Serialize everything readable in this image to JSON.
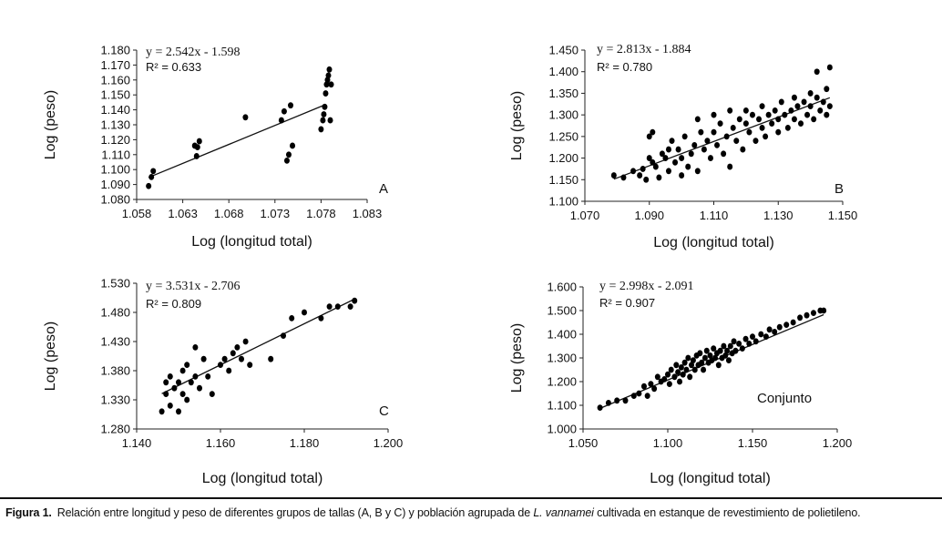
{
  "chart_data": [
    {
      "type": "scatter",
      "panel_label": "A",
      "equation": "y = 2.542x - 1.598",
      "r2_label": "R² = 0.633",
      "xlabel": "Log (longitud total)",
      "ylabel": "Log (peso)",
      "xlim": [
        1.058,
        1.083
      ],
      "ylim": [
        1.08,
        1.18
      ],
      "xticks": [
        "1.058",
        "1.063",
        "1.068",
        "1.073",
        "1.078",
        "1.083"
      ],
      "yticks": [
        "1.080",
        "1.090",
        "1.100",
        "1.110",
        "1.120",
        "1.130",
        "1.140",
        "1.150",
        "1.160",
        "1.170",
        "1.180"
      ],
      "trendline": {
        "slope": 2.542,
        "intercept": -1.598,
        "x_range": [
          1.0593,
          1.0785
        ]
      },
      "points": [
        [
          1.0593,
          1.089
        ],
        [
          1.0596,
          1.095
        ],
        [
          1.0598,
          1.099
        ],
        [
          1.0643,
          1.116
        ],
        [
          1.0645,
          1.109
        ],
        [
          1.0646,
          1.115
        ],
        [
          1.0648,
          1.119
        ],
        [
          1.0698,
          1.135
        ],
        [
          1.0737,
          1.133
        ],
        [
          1.074,
          1.139
        ],
        [
          1.0743,
          1.106
        ],
        [
          1.0745,
          1.11
        ],
        [
          1.0747,
          1.143
        ],
        [
          1.0749,
          1.116
        ],
        [
          1.078,
          1.127
        ],
        [
          1.0782,
          1.133
        ],
        [
          1.0783,
          1.137
        ],
        [
          1.0784,
          1.142
        ],
        [
          1.0785,
          1.151
        ],
        [
          1.0786,
          1.157
        ],
        [
          1.0787,
          1.16
        ],
        [
          1.0788,
          1.163
        ],
        [
          1.0789,
          1.167
        ],
        [
          1.079,
          1.133
        ],
        [
          1.0791,
          1.157
        ]
      ]
    },
    {
      "type": "scatter",
      "panel_label": "B",
      "equation": "y = 2.813x - 1.884",
      "r2_label": "R² = 0.780",
      "xlabel": "Log (longitud total)",
      "ylabel": "Log (peso)",
      "xlim": [
        1.07,
        1.15
      ],
      "ylim": [
        1.1,
        1.45
      ],
      "xticks": [
        "1.070",
        "1.090",
        "1.110",
        "1.130",
        "1.150"
      ],
      "yticks": [
        "1.100",
        "1.150",
        "1.200",
        "1.250",
        "1.300",
        "1.350",
        "1.400",
        "1.450"
      ],
      "trendline": {
        "slope": 2.813,
        "intercept": -1.884,
        "x_range": [
          1.079,
          1.146
        ]
      },
      "points": [
        [
          1.079,
          1.16
        ],
        [
          1.082,
          1.155
        ],
        [
          1.085,
          1.17
        ],
        [
          1.087,
          1.16
        ],
        [
          1.088,
          1.175
        ],
        [
          1.089,
          1.15
        ],
        [
          1.09,
          1.2
        ],
        [
          1.09,
          1.25
        ],
        [
          1.091,
          1.19
        ],
        [
          1.091,
          1.26
        ],
        [
          1.092,
          1.18
        ],
        [
          1.093,
          1.155
        ],
        [
          1.094,
          1.21
        ],
        [
          1.095,
          1.2
        ],
        [
          1.096,
          1.22
        ],
        [
          1.096,
          1.17
        ],
        [
          1.097,
          1.24
        ],
        [
          1.098,
          1.19
        ],
        [
          1.099,
          1.22
        ],
        [
          1.1,
          1.2
        ],
        [
          1.1,
          1.16
        ],
        [
          1.101,
          1.25
        ],
        [
          1.102,
          1.18
        ],
        [
          1.103,
          1.21
        ],
        [
          1.104,
          1.23
        ],
        [
          1.105,
          1.29
        ],
        [
          1.105,
          1.17
        ],
        [
          1.106,
          1.26
        ],
        [
          1.107,
          1.22
        ],
        [
          1.108,
          1.24
        ],
        [
          1.109,
          1.2
        ],
        [
          1.11,
          1.26
        ],
        [
          1.11,
          1.3
        ],
        [
          1.111,
          1.23
        ],
        [
          1.112,
          1.28
        ],
        [
          1.113,
          1.21
        ],
        [
          1.114,
          1.25
        ],
        [
          1.115,
          1.31
        ],
        [
          1.115,
          1.18
        ],
        [
          1.116,
          1.27
        ],
        [
          1.117,
          1.24
        ],
        [
          1.118,
          1.29
        ],
        [
          1.119,
          1.22
        ],
        [
          1.12,
          1.28
        ],
        [
          1.12,
          1.31
        ],
        [
          1.121,
          1.26
        ],
        [
          1.122,
          1.3
        ],
        [
          1.123,
          1.24
        ],
        [
          1.124,
          1.29
        ],
        [
          1.125,
          1.27
        ],
        [
          1.125,
          1.32
        ],
        [
          1.126,
          1.25
        ],
        [
          1.127,
          1.3
        ],
        [
          1.128,
          1.28
        ],
        [
          1.129,
          1.31
        ],
        [
          1.13,
          1.26
        ],
        [
          1.13,
          1.29
        ],
        [
          1.131,
          1.33
        ],
        [
          1.132,
          1.3
        ],
        [
          1.133,
          1.27
        ],
        [
          1.134,
          1.31
        ],
        [
          1.135,
          1.29
        ],
        [
          1.135,
          1.34
        ],
        [
          1.136,
          1.32
        ],
        [
          1.137,
          1.28
        ],
        [
          1.138,
          1.33
        ],
        [
          1.139,
          1.3
        ],
        [
          1.14,
          1.35
        ],
        [
          1.14,
          1.32
        ],
        [
          1.141,
          1.29
        ],
        [
          1.142,
          1.34
        ],
        [
          1.142,
          1.4
        ],
        [
          1.143,
          1.31
        ],
        [
          1.144,
          1.33
        ],
        [
          1.145,
          1.3
        ],
        [
          1.145,
          1.36
        ],
        [
          1.146,
          1.41
        ],
        [
          1.146,
          1.32
        ]
      ]
    },
    {
      "type": "scatter",
      "panel_label": "C",
      "equation": "y = 3.531x - 2.706",
      "r2_label": "R² = 0.809",
      "xlabel": "Log (longitud total)",
      "ylabel": "Log (peso)",
      "xlim": [
        1.14,
        1.2
      ],
      "ylim": [
        1.28,
        1.53
      ],
      "xticks": [
        "1.140",
        "1.160",
        "1.180",
        "1.200"
      ],
      "yticks": [
        "1.280",
        "1.330",
        "1.380",
        "1.430",
        "1.480",
        "1.530"
      ],
      "trendline": {
        "slope": 3.531,
        "intercept": -2.706,
        "x_range": [
          1.146,
          1.192
        ]
      },
      "points": [
        [
          1.146,
          1.31
        ],
        [
          1.147,
          1.36
        ],
        [
          1.147,
          1.34
        ],
        [
          1.148,
          1.37
        ],
        [
          1.148,
          1.32
        ],
        [
          1.149,
          1.35
        ],
        [
          1.15,
          1.36
        ],
        [
          1.15,
          1.31
        ],
        [
          1.151,
          1.38
        ],
        [
          1.151,
          1.34
        ],
        [
          1.152,
          1.33
        ],
        [
          1.152,
          1.39
        ],
        [
          1.153,
          1.36
        ],
        [
          1.154,
          1.42
        ],
        [
          1.154,
          1.37
        ],
        [
          1.155,
          1.35
        ],
        [
          1.156,
          1.4
        ],
        [
          1.157,
          1.37
        ],
        [
          1.158,
          1.34
        ],
        [
          1.16,
          1.39
        ],
        [
          1.161,
          1.4
        ],
        [
          1.162,
          1.38
        ],
        [
          1.163,
          1.41
        ],
        [
          1.164,
          1.42
        ],
        [
          1.165,
          1.4
        ],
        [
          1.166,
          1.43
        ],
        [
          1.167,
          1.39
        ],
        [
          1.172,
          1.4
        ],
        [
          1.175,
          1.44
        ],
        [
          1.177,
          1.47
        ],
        [
          1.18,
          1.48
        ],
        [
          1.184,
          1.47
        ],
        [
          1.186,
          1.49
        ],
        [
          1.188,
          1.49
        ],
        [
          1.191,
          1.49
        ],
        [
          1.192,
          1.5
        ]
      ]
    },
    {
      "type": "scatter",
      "panel_label": "Conjunto",
      "equation": "y = 2.998x - 2.091",
      "r2_label": "R² = 0.907",
      "xlabel": "Log (longitud total)",
      "ylabel": "Log (peso)",
      "xlim": [
        1.05,
        1.2
      ],
      "ylim": [
        1.0,
        1.6
      ],
      "xticks": [
        "1.050",
        "1.100",
        "1.150",
        "1.200"
      ],
      "yticks": [
        "1.000",
        "1.100",
        "1.200",
        "1.300",
        "1.400",
        "1.500",
        "1.600"
      ],
      "trendline": {
        "slope": 2.998,
        "intercept": -2.091,
        "x_range": [
          1.06,
          1.192
        ]
      },
      "points": [
        [
          1.06,
          1.09
        ],
        [
          1.065,
          1.11
        ],
        [
          1.07,
          1.12
        ],
        [
          1.075,
          1.12
        ],
        [
          1.08,
          1.14
        ],
        [
          1.083,
          1.15
        ],
        [
          1.086,
          1.18
        ],
        [
          1.088,
          1.14
        ],
        [
          1.09,
          1.19
        ],
        [
          1.092,
          1.17
        ],
        [
          1.094,
          1.22
        ],
        [
          1.096,
          1.2
        ],
        [
          1.098,
          1.21
        ],
        [
          1.1,
          1.23
        ],
        [
          1.101,
          1.19
        ],
        [
          1.102,
          1.25
        ],
        [
          1.104,
          1.22
        ],
        [
          1.105,
          1.27
        ],
        [
          1.106,
          1.24
        ],
        [
          1.107,
          1.2
        ],
        [
          1.108,
          1.26
        ],
        [
          1.109,
          1.23
        ],
        [
          1.11,
          1.28
        ],
        [
          1.111,
          1.25
        ],
        [
          1.112,
          1.3
        ],
        [
          1.113,
          1.22
        ],
        [
          1.114,
          1.27
        ],
        [
          1.115,
          1.29
        ],
        [
          1.116,
          1.25
        ],
        [
          1.117,
          1.31
        ],
        [
          1.118,
          1.27
        ],
        [
          1.119,
          1.32
        ],
        [
          1.12,
          1.28
        ],
        [
          1.121,
          1.25
        ],
        [
          1.122,
          1.3
        ],
        [
          1.123,
          1.33
        ],
        [
          1.124,
          1.28
        ],
        [
          1.125,
          1.31
        ],
        [
          1.126,
          1.29
        ],
        [
          1.127,
          1.34
        ],
        [
          1.128,
          1.3
        ],
        [
          1.129,
          1.32
        ],
        [
          1.13,
          1.27
        ],
        [
          1.131,
          1.33
        ],
        [
          1.132,
          1.3
        ],
        [
          1.133,
          1.35
        ],
        [
          1.134,
          1.31
        ],
        [
          1.135,
          1.33
        ],
        [
          1.136,
          1.29
        ],
        [
          1.137,
          1.35
        ],
        [
          1.138,
          1.32
        ],
        [
          1.139,
          1.37
        ],
        [
          1.14,
          1.33
        ],
        [
          1.142,
          1.36
        ],
        [
          1.144,
          1.34
        ],
        [
          1.146,
          1.38
        ],
        [
          1.148,
          1.36
        ],
        [
          1.15,
          1.39
        ],
        [
          1.152,
          1.37
        ],
        [
          1.155,
          1.4
        ],
        [
          1.158,
          1.39
        ],
        [
          1.16,
          1.42
        ],
        [
          1.163,
          1.41
        ],
        [
          1.166,
          1.43
        ],
        [
          1.17,
          1.44
        ],
        [
          1.174,
          1.45
        ],
        [
          1.178,
          1.47
        ],
        [
          1.182,
          1.48
        ],
        [
          1.186,
          1.49
        ],
        [
          1.19,
          1.5
        ],
        [
          1.192,
          1.5
        ]
      ]
    }
  ],
  "caption": {
    "label": "Figura 1.",
    "text_before": "Relación entre longitud y peso de diferentes grupos de tallas (A, B y C) y población agrupada de ",
    "species": "L. vannamei",
    "text_after": " cultivada en estanque de revestimiento de polietileno."
  }
}
